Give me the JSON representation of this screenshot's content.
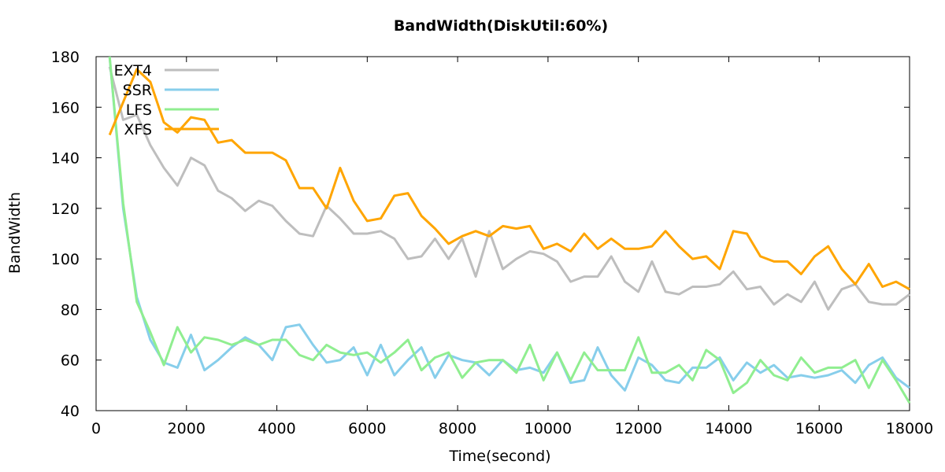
{
  "chart_data": {
    "type": "line",
    "title": "BandWidth(DiskUtil:60%)",
    "xlabel": "Time(second)",
    "ylabel": "BandWidth",
    "xlim": [
      0,
      18000
    ],
    "ylim": [
      40,
      180
    ],
    "xticks": [
      0,
      2000,
      4000,
      6000,
      8000,
      10000,
      12000,
      14000,
      16000,
      18000
    ],
    "yticks": [
      40,
      60,
      80,
      100,
      120,
      140,
      160,
      180
    ],
    "grid": false,
    "legend_position": "top-left",
    "x": [
      300,
      600,
      900,
      1200,
      1500,
      1800,
      2100,
      2400,
      2700,
      3000,
      3300,
      3600,
      3900,
      4200,
      4500,
      4800,
      5100,
      5400,
      5700,
      6000,
      6300,
      6600,
      6900,
      7200,
      7500,
      7800,
      8100,
      8400,
      8700,
      9000,
      9300,
      9600,
      9900,
      10200,
      10500,
      10800,
      11100,
      11400,
      11700,
      12000,
      12300,
      12600,
      12900,
      13200,
      13500,
      13800,
      14100,
      14400,
      14700,
      15000,
      15300,
      15600,
      15900,
      16200,
      16500,
      16800,
      17100,
      17400,
      17700,
      18000
    ],
    "series": [
      {
        "name": "EXT4",
        "color": "#bebebe",
        "values": [
          176,
          155,
          157,
          145,
          136,
          129,
          140,
          137,
          127,
          124,
          119,
          123,
          121,
          115,
          110,
          109,
          121,
          116,
          110,
          110,
          111,
          108,
          100,
          101,
          108,
          100,
          108,
          93,
          111,
          96,
          100,
          103,
          102,
          99,
          91,
          93,
          93,
          101,
          91,
          87,
          99,
          87,
          86,
          89,
          89,
          90,
          95,
          88,
          89,
          82,
          86,
          83,
          91,
          80,
          88,
          90,
          83,
          82,
          82,
          86
        ]
      },
      {
        "name": "SSR",
        "color": "#87ceeb",
        "values": [
          180,
          120,
          85,
          68,
          59,
          57,
          70,
          56,
          60,
          65,
          69,
          66,
          60,
          73,
          74,
          66,
          59,
          60,
          65,
          54,
          66,
          54,
          60,
          65,
          53,
          62,
          60,
          59,
          54,
          60,
          56,
          57,
          55,
          63,
          51,
          52,
          65,
          54,
          48,
          61,
          58,
          52,
          51,
          57,
          57,
          61,
          52,
          59,
          55,
          58,
          53,
          54,
          53,
          54,
          56,
          51,
          58,
          61,
          53,
          49
        ]
      },
      {
        "name": "LFS",
        "color": "#90ee90",
        "values": [
          180,
          122,
          83,
          71,
          58,
          73,
          63,
          69,
          68,
          66,
          68,
          66,
          68,
          68,
          62,
          60,
          66,
          63,
          62,
          63,
          59,
          63,
          68,
          56,
          61,
          63,
          53,
          59,
          60,
          60,
          55,
          66,
          52,
          63,
          52,
          63,
          56,
          56,
          56,
          69,
          55,
          55,
          58,
          52,
          64,
          60,
          47,
          51,
          60,
          54,
          52,
          61,
          55,
          57,
          57,
          60,
          49,
          60,
          52,
          43
        ]
      },
      {
        "name": "XFS",
        "color": "#ffa500",
        "values": [
          149,
          162,
          175,
          170,
          154,
          150,
          156,
          155,
          146,
          147,
          142,
          142,
          142,
          139,
          128,
          128,
          120,
          136,
          123,
          115,
          116,
          125,
          126,
          117,
          112,
          106,
          109,
          111,
          109,
          113,
          112,
          113,
          104,
          106,
          103,
          110,
          104,
          108,
          104,
          104,
          105,
          111,
          105,
          100,
          101,
          96,
          111,
          110,
          101,
          99,
          99,
          94,
          101,
          105,
          96,
          90,
          98,
          89,
          91,
          88
        ]
      }
    ]
  }
}
